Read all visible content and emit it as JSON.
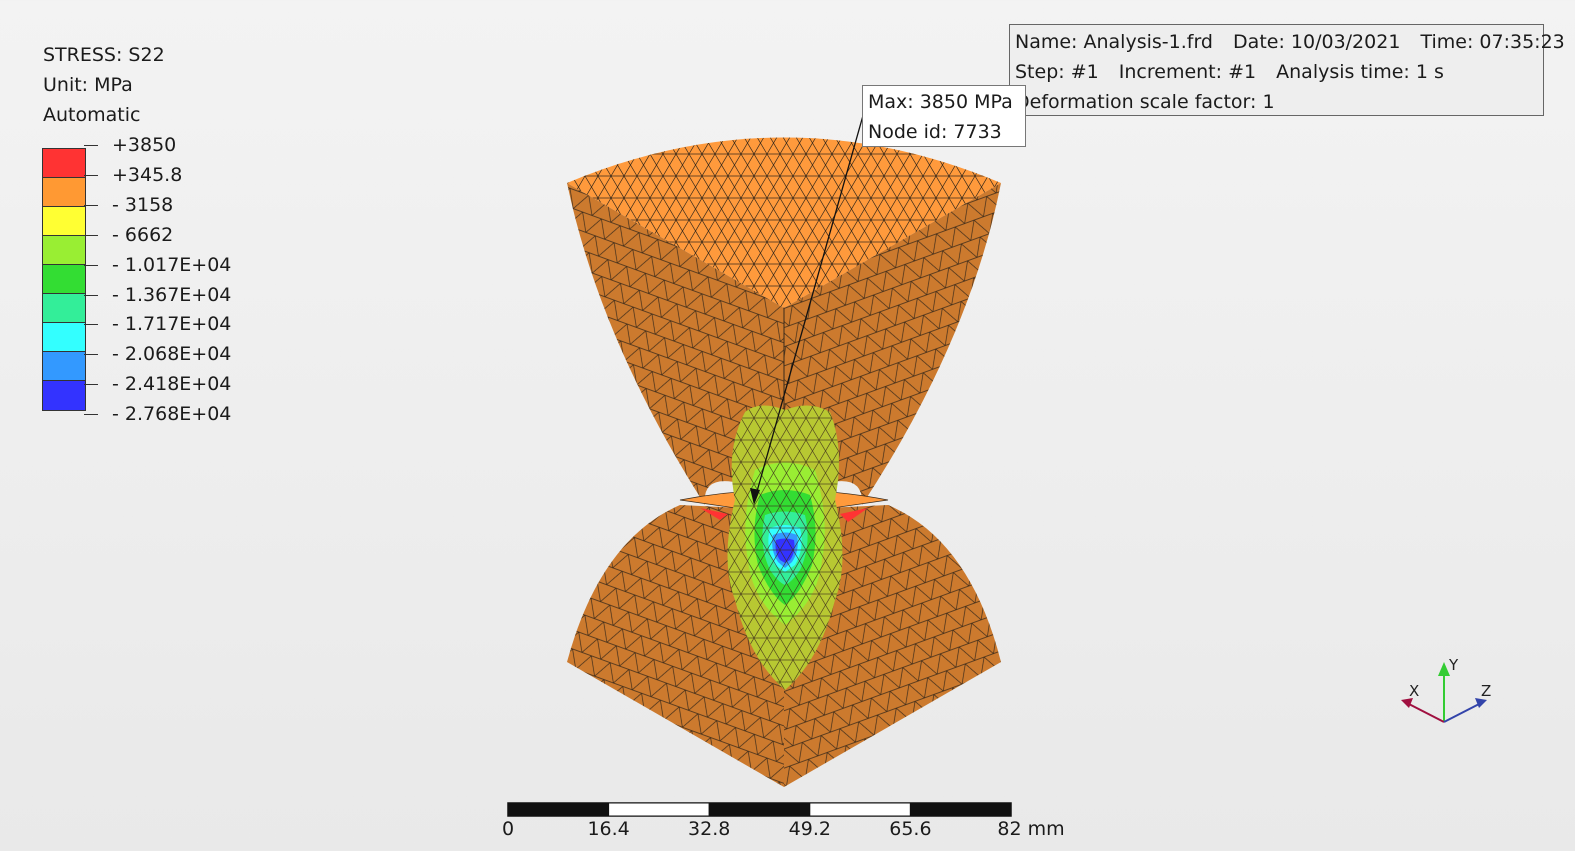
{
  "legend": {
    "title": "STRESS: S22",
    "unit": "Unit: MPa",
    "mode": "Automatic",
    "colors": [
      "#ff3333",
      "#ff9933",
      "#ffff33",
      "#99ee33",
      "#33dd33",
      "#33ee99",
      "#33ffff",
      "#3399ff",
      "#3333ff"
    ],
    "labels": [
      "+3850",
      "+345.8",
      "- 3158",
      "- 6662",
      "- 1.017E+04",
      "- 1.367E+04",
      "- 1.717E+04",
      "- 2.068E+04",
      "- 2.418E+04",
      "- 2.768E+04"
    ]
  },
  "info": {
    "name": "Name: Analysis-1.frd",
    "date": "Date: 10/03/2021",
    "time": "Time: 07:35:23",
    "step": "Step: #1",
    "increment": "Increment: #1",
    "analysis_time": "Analysis time: 1 s",
    "scale_factor": "Deformation scale factor: 1"
  },
  "max_marker": {
    "max": "Max: 3850 MPa",
    "node": "Node id: 7733"
  },
  "scale_bar": {
    "labels": [
      "0",
      "16.4",
      "32.8",
      "49.2",
      "65.6",
      "82 mm"
    ]
  },
  "axes": {
    "x": "X",
    "y": "Y",
    "z": "Z",
    "x_color": "#a01040",
    "y_color": "#33cc33",
    "z_color": "#3344aa"
  },
  "model_colors": {
    "top_face": "#ff9a3c",
    "side_face": "#cc7a2e",
    "mesh_line": "#3a2a1a"
  }
}
